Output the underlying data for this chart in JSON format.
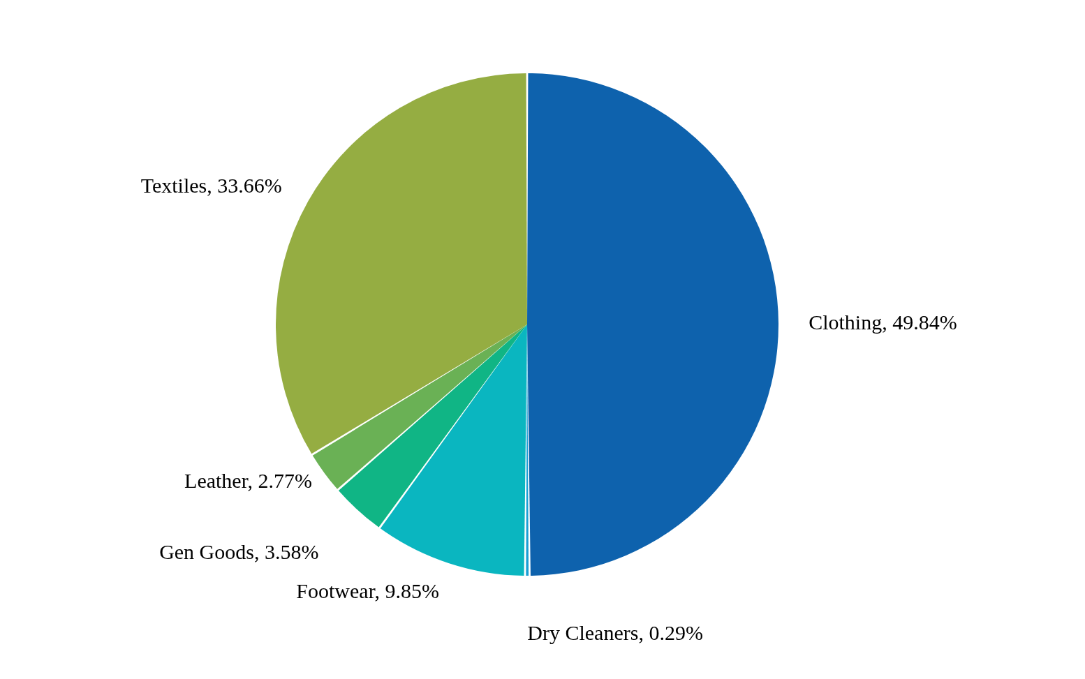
{
  "chart_data": {
    "type": "pie",
    "categories": [
      "Clothing",
      "Dry Cleaners",
      "Footwear",
      "Gen Goods",
      "Leather",
      "Textiles"
    ],
    "values": [
      49.84,
      0.29,
      9.85,
      3.58,
      2.77,
      33.66
    ],
    "value_labels": [
      "49.84%",
      "0.29%",
      "9.85%",
      "3.58%",
      "2.77%",
      "33.66%"
    ],
    "colors": [
      "#0e62ad",
      "#1a9fd4",
      "#0ab6c0",
      "#10b585",
      "#6ab155",
      "#95ad42"
    ],
    "legend": false
  }
}
